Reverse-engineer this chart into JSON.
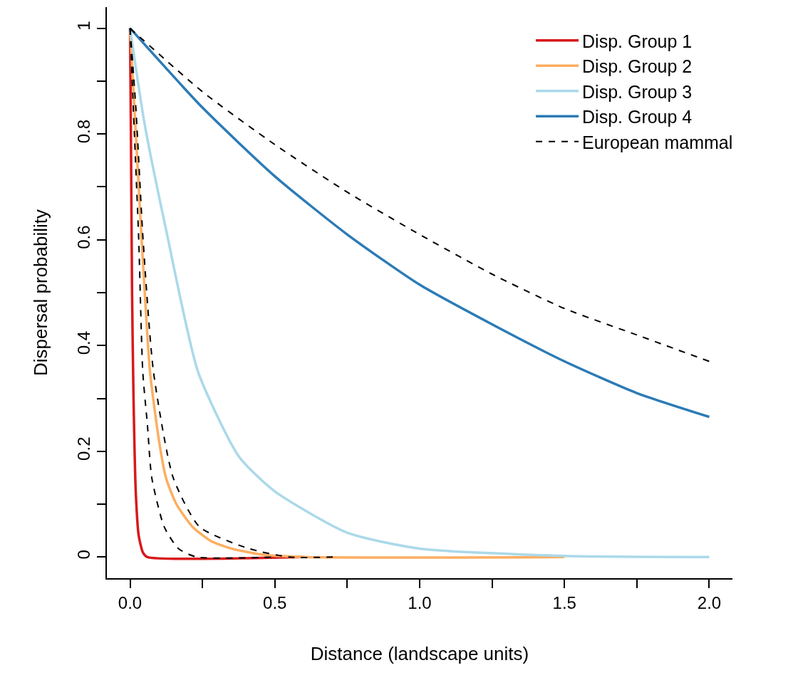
{
  "chart_data": {
    "type": "line",
    "xlabel": "Distance (landscape units)",
    "ylabel": "Dispersal probability",
    "xlim": [
      -0.08,
      2.08
    ],
    "ylim": [
      -0.04,
      1.04
    ],
    "xticks": [
      {
        "value": 0,
        "label": "0.0"
      },
      {
        "value": 0.25,
        "label": null
      },
      {
        "value": 0.5,
        "label": "0.5"
      },
      {
        "value": 0.75,
        "label": null
      },
      {
        "value": 1,
        "label": "1.0"
      },
      {
        "value": 1.25,
        "label": null
      },
      {
        "value": 1.5,
        "label": "1.5"
      },
      {
        "value": 1.75,
        "label": null
      },
      {
        "value": 2,
        "label": "2.0"
      }
    ],
    "yticks": [
      0,
      {
        "value": 0.1,
        "label": null
      },
      0.2,
      {
        "value": 0.3,
        "label": null
      },
      0.4,
      {
        "value": 0.5,
        "label": null
      },
      0.6,
      {
        "value": 0.7,
        "label": null
      },
      0.8,
      {
        "value": 0.9,
        "label": null
      },
      1
    ],
    "legend": "top right",
    "marker": "none",
    "series": [
      {
        "name": "Disp. Group 1",
        "color": "#d7191c",
        "line_style": "solid",
        "x": [
          0,
          0.003,
          0.007,
          0.012,
          0.02,
          0.03,
          0.045,
          0.06,
          0.6
        ],
        "values": [
          1,
          0.8,
          0.5,
          0.3,
          0.12,
          0.04,
          0.008,
          0,
          0
        ]
      },
      {
        "name": "Disp. Group 2",
        "color": "#fdae61",
        "line_style": "solid",
        "x": [
          0,
          0.02,
          0.038,
          0.069,
          0.1,
          0.124,
          0.16,
          0.216,
          0.28,
          0.35,
          0.45,
          0.6,
          1.5
        ],
        "values": [
          1,
          0.8,
          0.62,
          0.35,
          0.22,
          0.15,
          0.1,
          0.057,
          0.03,
          0.016,
          0.005,
          0,
          0
        ]
      },
      {
        "name": "Disp. Group 3",
        "color": "#abd9e9",
        "line_style": "solid",
        "x": [
          0,
          0.05,
          0.124,
          0.235,
          0.376,
          0.5,
          0.75,
          1,
          1.5,
          2
        ],
        "values": [
          1,
          0.82,
          0.62,
          0.35,
          0.19,
          0.124,
          0.046,
          0.016,
          0.002,
          0
        ]
      },
      {
        "name": "Disp. Group 4",
        "color": "#2c7bb6",
        "line_style": "solid",
        "x": [
          0,
          0.25,
          0.5,
          0.75,
          1,
          1.25,
          1.5,
          1.75,
          2
        ],
        "values": [
          1,
          0.85,
          0.72,
          0.61,
          0.515,
          0.44,
          0.37,
          0.31,
          0.265
        ]
      },
      {
        "name": "European mammal",
        "color": "#000000",
        "line_style": "dashed",
        "x": [
          0,
          0.25,
          0.5,
          0.75,
          1,
          1.25,
          1.5,
          1.75,
          2
        ],
        "values": [
          1,
          0.88,
          0.78,
          0.69,
          0.61,
          0.535,
          0.47,
          0.42,
          0.37
        ]
      },
      {
        "color": "#000000",
        "line_style": "dashed",
        "x": [
          0,
          0.015,
          0.03,
          0.044,
          0.06,
          0.075,
          0.118,
          0.167,
          0.23,
          0.5
        ],
        "values": [
          1,
          0.8,
          0.6,
          0.35,
          0.25,
          0.15,
          0.057,
          0.016,
          0,
          0
        ]
      },
      {
        "color": "#000000",
        "line_style": "dashed",
        "x": [
          0,
          0.02,
          0.045,
          0.081,
          0.149,
          0.24,
          0.41,
          0.55,
          0.7
        ],
        "values": [
          1,
          0.85,
          0.6,
          0.35,
          0.15,
          0.057,
          0.016,
          0,
          0
        ]
      }
    ]
  }
}
